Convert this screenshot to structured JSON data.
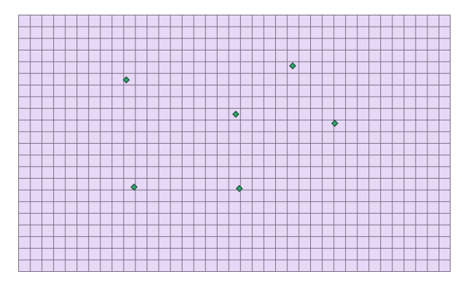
{
  "board": {
    "background_color": "#e8d8f8",
    "grid_line_color": "#746a7c",
    "columns": 37,
    "rows": 22
  },
  "marker_color": "#2aa86a",
  "markers": [
    {
      "col": 9.25,
      "row": 5.6
    },
    {
      "col": 23.5,
      "row": 4.4
    },
    {
      "col": 18.6,
      "row": 8.5
    },
    {
      "col": 27.1,
      "row": 9.3
    },
    {
      "col": 9.9,
      "row": 14.8
    },
    {
      "col": 18.9,
      "row": 14.9
    }
  ]
}
